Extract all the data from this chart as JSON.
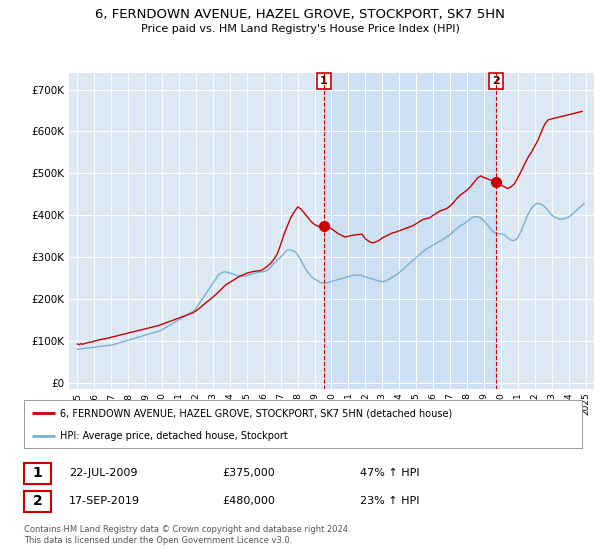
{
  "title": "6, FERNDOWN AVENUE, HAZEL GROVE, STOCKPORT, SK7 5HN",
  "subtitle": "Price paid vs. HM Land Registry's House Price Index (HPI)",
  "title_fontsize": 10,
  "subtitle_fontsize": 8.5,
  "background_color": "#dce9f5",
  "fig_bg_color": "#ffffff",
  "red_line_color": "#cc0000",
  "blue_line_color": "#7ab0d4",
  "shade_color": "#c8ddf0",
  "marker1_x": 2009.55,
  "marker1_y": 375000,
  "marker2_x": 2019.71,
  "marker2_y": 480000,
  "yticks": [
    0,
    100000,
    200000,
    300000,
    400000,
    500000,
    600000,
    700000
  ],
  "ylim": [
    -15000,
    740000
  ],
  "xlim": [
    1994.5,
    2025.5
  ],
  "legend_label_red": "6, FERNDOWN AVENUE, HAZEL GROVE, STOCKPORT, SK7 5HN (detached house)",
  "legend_label_blue": "HPI: Average price, detached house, Stockport",
  "annotation1_date": "22-JUL-2009",
  "annotation1_price": "£375,000",
  "annotation1_hpi": "47% ↑ HPI",
  "annotation2_date": "17-SEP-2019",
  "annotation2_price": "£480,000",
  "annotation2_hpi": "23% ↑ HPI",
  "footnote": "Contains HM Land Registry data © Crown copyright and database right 2024.\nThis data is licensed under the Open Government Licence v3.0.",
  "red_years": [
    1995.0,
    1995.1,
    1995.2,
    1995.3,
    1995.5,
    1995.7,
    1995.9,
    1996.0,
    1996.2,
    1996.4,
    1996.6,
    1996.8,
    1997.0,
    1997.2,
    1997.4,
    1997.6,
    1997.8,
    1998.0,
    1998.2,
    1998.4,
    1998.6,
    1998.8,
    1999.0,
    1999.2,
    1999.4,
    1999.6,
    1999.8,
    2000.0,
    2000.2,
    2000.4,
    2000.6,
    2000.8,
    2001.0,
    2001.2,
    2001.4,
    2001.6,
    2001.8,
    2002.0,
    2002.2,
    2002.4,
    2002.6,
    2002.8,
    2003.0,
    2003.2,
    2003.4,
    2003.6,
    2003.8,
    2004.0,
    2004.2,
    2004.4,
    2004.6,
    2004.8,
    2005.0,
    2005.2,
    2005.4,
    2005.6,
    2005.8,
    2006.0,
    2006.2,
    2006.4,
    2006.6,
    2006.8,
    2007.0,
    2007.2,
    2007.4,
    2007.6,
    2007.8,
    2008.0,
    2008.2,
    2008.4,
    2008.6,
    2008.8,
    2009.0,
    2009.2,
    2009.4,
    2009.55,
    2010.0,
    2010.2,
    2010.4,
    2010.6,
    2010.8,
    2011.0,
    2011.2,
    2011.4,
    2011.6,
    2011.8,
    2012.0,
    2012.2,
    2012.4,
    2012.6,
    2012.8,
    2013.0,
    2013.2,
    2013.4,
    2013.6,
    2013.8,
    2014.0,
    2014.2,
    2014.4,
    2014.6,
    2014.8,
    2015.0,
    2015.2,
    2015.4,
    2015.6,
    2015.8,
    2016.0,
    2016.2,
    2016.4,
    2016.6,
    2016.8,
    2017.0,
    2017.2,
    2017.4,
    2017.6,
    2017.8,
    2018.0,
    2018.2,
    2018.4,
    2018.6,
    2018.8,
    2019.0,
    2019.2,
    2019.4,
    2019.55,
    2019.71,
    2020.0,
    2020.2,
    2020.4,
    2020.6,
    2020.8,
    2021.0,
    2021.2,
    2021.4,
    2021.6,
    2021.8,
    2022.0,
    2022.2,
    2022.4,
    2022.6,
    2022.8,
    2023.0,
    2023.2,
    2023.4,
    2023.6,
    2023.8,
    2024.0,
    2024.2,
    2024.4,
    2024.6,
    2024.8
  ],
  "red_values": [
    93000,
    91000,
    94000,
    92000,
    95000,
    97000,
    98000,
    100000,
    102000,
    104000,
    105000,
    107000,
    109000,
    111000,
    113000,
    115000,
    117000,
    119000,
    121000,
    123000,
    125000,
    127000,
    129000,
    131000,
    133000,
    135000,
    137000,
    140000,
    143000,
    146000,
    149000,
    152000,
    155000,
    158000,
    161000,
    164000,
    167000,
    172000,
    178000,
    185000,
    192000,
    198000,
    205000,
    212000,
    220000,
    228000,
    235000,
    240000,
    245000,
    250000,
    255000,
    258000,
    262000,
    264000,
    266000,
    267000,
    268000,
    272000,
    278000,
    285000,
    295000,
    308000,
    330000,
    355000,
    375000,
    395000,
    408000,
    420000,
    415000,
    405000,
    395000,
    385000,
    378000,
    374000,
    372000,
    375000,
    368000,
    362000,
    356000,
    352000,
    348000,
    350000,
    352000,
    353000,
    354000,
    355000,
    344000,
    338000,
    334000,
    336000,
    340000,
    346000,
    350000,
    354000,
    358000,
    360000,
    363000,
    366000,
    369000,
    372000,
    375000,
    380000,
    385000,
    390000,
    392000,
    394000,
    400000,
    405000,
    410000,
    413000,
    416000,
    422000,
    430000,
    440000,
    448000,
    454000,
    460000,
    468000,
    478000,
    488000,
    494000,
    490000,
    487000,
    484000,
    482000,
    480000,
    472000,
    468000,
    464000,
    468000,
    475000,
    490000,
    505000,
    522000,
    538000,
    550000,
    565000,
    580000,
    600000,
    618000,
    628000,
    630000,
    632000,
    634000,
    636000,
    638000,
    640000,
    642000,
    644000,
    646000,
    648000
  ],
  "blue_years": [
    1995.0,
    1995.08,
    1995.17,
    1995.25,
    1995.33,
    1995.42,
    1995.5,
    1995.58,
    1995.67,
    1995.75,
    1995.83,
    1995.92,
    1996.0,
    1996.08,
    1996.17,
    1996.25,
    1996.33,
    1996.42,
    1996.5,
    1996.58,
    1996.67,
    1996.75,
    1996.83,
    1996.92,
    1997.0,
    1997.08,
    1997.17,
    1997.25,
    1997.33,
    1997.42,
    1997.5,
    1997.58,
    1997.67,
    1997.75,
    1997.83,
    1997.92,
    1998.0,
    1998.08,
    1998.17,
    1998.25,
    1998.33,
    1998.42,
    1998.5,
    1998.58,
    1998.67,
    1998.75,
    1998.83,
    1998.92,
    1999.0,
    1999.08,
    1999.17,
    1999.25,
    1999.33,
    1999.42,
    1999.5,
    1999.58,
    1999.67,
    1999.75,
    1999.83,
    1999.92,
    2000.0,
    2000.08,
    2000.17,
    2000.25,
    2000.33,
    2000.42,
    2000.5,
    2000.58,
    2000.67,
    2000.75,
    2000.83,
    2000.92,
    2001.0,
    2001.08,
    2001.17,
    2001.25,
    2001.33,
    2001.42,
    2001.5,
    2001.58,
    2001.67,
    2001.75,
    2001.83,
    2001.92,
    2002.0,
    2002.08,
    2002.17,
    2002.25,
    2002.33,
    2002.42,
    2002.5,
    2002.58,
    2002.67,
    2002.75,
    2002.83,
    2002.92,
    2003.0,
    2003.08,
    2003.17,
    2003.25,
    2003.33,
    2003.42,
    2003.5,
    2003.58,
    2003.67,
    2003.75,
    2003.83,
    2003.92,
    2004.0,
    2004.08,
    2004.17,
    2004.25,
    2004.33,
    2004.42,
    2004.5,
    2004.58,
    2004.67,
    2004.75,
    2004.83,
    2004.92,
    2005.0,
    2005.08,
    2005.17,
    2005.25,
    2005.33,
    2005.42,
    2005.5,
    2005.58,
    2005.67,
    2005.75,
    2005.83,
    2005.92,
    2006.0,
    2006.08,
    2006.17,
    2006.25,
    2006.33,
    2006.42,
    2006.5,
    2006.58,
    2006.67,
    2006.75,
    2006.83,
    2006.92,
    2007.0,
    2007.08,
    2007.17,
    2007.25,
    2007.33,
    2007.42,
    2007.5,
    2007.58,
    2007.67,
    2007.75,
    2007.83,
    2007.92,
    2008.0,
    2008.08,
    2008.17,
    2008.25,
    2008.33,
    2008.42,
    2008.5,
    2008.58,
    2008.67,
    2008.75,
    2008.83,
    2008.92,
    2009.0,
    2009.08,
    2009.17,
    2009.25,
    2009.33,
    2009.42,
    2009.5,
    2009.58,
    2009.67,
    2009.75,
    2009.83,
    2009.92,
    2010.0,
    2010.08,
    2010.17,
    2010.25,
    2010.33,
    2010.42,
    2010.5,
    2010.58,
    2010.67,
    2010.75,
    2010.83,
    2010.92,
    2011.0,
    2011.08,
    2011.17,
    2011.25,
    2011.33,
    2011.42,
    2011.5,
    2011.58,
    2011.67,
    2011.75,
    2011.83,
    2011.92,
    2012.0,
    2012.08,
    2012.17,
    2012.25,
    2012.33,
    2012.42,
    2012.5,
    2012.58,
    2012.67,
    2012.75,
    2012.83,
    2012.92,
    2013.0,
    2013.08,
    2013.17,
    2013.25,
    2013.33,
    2013.42,
    2013.5,
    2013.58,
    2013.67,
    2013.75,
    2013.83,
    2013.92,
    2014.0,
    2014.08,
    2014.17,
    2014.25,
    2014.33,
    2014.42,
    2014.5,
    2014.58,
    2014.67,
    2014.75,
    2014.83,
    2014.92,
    2015.0,
    2015.08,
    2015.17,
    2015.25,
    2015.33,
    2015.42,
    2015.5,
    2015.58,
    2015.67,
    2015.75,
    2015.83,
    2015.92,
    2016.0,
    2016.08,
    2016.17,
    2016.25,
    2016.33,
    2016.42,
    2016.5,
    2016.58,
    2016.67,
    2016.75,
    2016.83,
    2016.92,
    2017.0,
    2017.08,
    2017.17,
    2017.25,
    2017.33,
    2017.42,
    2017.5,
    2017.58,
    2017.67,
    2017.75,
    2017.83,
    2017.92,
    2018.0,
    2018.08,
    2018.17,
    2018.25,
    2018.33,
    2018.42,
    2018.5,
    2018.58,
    2018.67,
    2018.75,
    2018.83,
    2018.92,
    2019.0,
    2019.08,
    2019.17,
    2019.25,
    2019.33,
    2019.42,
    2019.5,
    2019.58,
    2019.67,
    2019.75,
    2019.83,
    2019.92,
    2020.0,
    2020.08,
    2020.17,
    2020.25,
    2020.33,
    2020.42,
    2020.5,
    2020.58,
    2020.67,
    2020.75,
    2020.83,
    2020.92,
    2021.0,
    2021.08,
    2021.17,
    2021.25,
    2021.33,
    2021.42,
    2021.5,
    2021.58,
    2021.67,
    2021.75,
    2021.83,
    2021.92,
    2022.0,
    2022.08,
    2022.17,
    2022.25,
    2022.33,
    2022.42,
    2022.5,
    2022.58,
    2022.67,
    2022.75,
    2022.83,
    2022.92,
    2023.0,
    2023.08,
    2023.17,
    2023.25,
    2023.33,
    2023.42,
    2023.5,
    2023.58,
    2023.67,
    2023.75,
    2023.83,
    2023.92,
    2024.0,
    2024.08,
    2024.17,
    2024.25,
    2024.33,
    2024.42,
    2024.5,
    2024.58,
    2024.67,
    2024.75,
    2024.83,
    2024.92
  ],
  "blue_values": [
    80000,
    80500,
    81000,
    81500,
    82000,
    82500,
    83000,
    83300,
    83600,
    83900,
    84200,
    84500,
    85000,
    85500,
    86000,
    86500,
    87000,
    87500,
    88000,
    88300,
    88600,
    88900,
    89200,
    89500,
    90000,
    91000,
    92000,
    93000,
    94000,
    95000,
    96000,
    97000,
    98000,
    99000,
    100000,
    101000,
    102000,
    103000,
    104000,
    105000,
    106000,
    107000,
    108000,
    109000,
    110000,
    111000,
    112000,
    113000,
    114000,
    115000,
    116000,
    117000,
    118000,
    119000,
    120000,
    121000,
    122000,
    123000,
    124000,
    125000,
    127000,
    129000,
    131000,
    133000,
    135000,
    137000,
    139000,
    141000,
    143000,
    145000,
    147000,
    149000,
    151000,
    153000,
    155000,
    157000,
    159000,
    161000,
    163000,
    165000,
    167000,
    169000,
    171000,
    173000,
    178000,
    183000,
    188000,
    193000,
    198000,
    203000,
    208000,
    213000,
    218000,
    223000,
    228000,
    233000,
    238000,
    243000,
    248000,
    253000,
    258000,
    260000,
    262000,
    264000,
    265000,
    265000,
    264000,
    263000,
    262000,
    261000,
    260000,
    259000,
    258000,
    257000,
    256000,
    255000,
    255000,
    255000,
    255000,
    255000,
    256000,
    257000,
    258000,
    259000,
    260000,
    261000,
    262000,
    263000,
    264000,
    265000,
    265000,
    265000,
    266000,
    267000,
    268000,
    270000,
    273000,
    277000,
    281000,
    285000,
    288000,
    291000,
    294000,
    297000,
    300000,
    304000,
    308000,
    312000,
    315000,
    317000,
    318000,
    317000,
    316000,
    315000,
    313000,
    310000,
    306000,
    300000,
    294000,
    288000,
    282000,
    276000,
    270000,
    265000,
    260000,
    256000,
    253000,
    250000,
    248000,
    246000,
    244000,
    242000,
    240000,
    239000,
    238000,
    238000,
    238000,
    239000,
    240000,
    241000,
    242000,
    243000,
    244000,
    245000,
    246000,
    247000,
    248000,
    249000,
    250000,
    251000,
    252000,
    253000,
    254000,
    255000,
    256000,
    257000,
    257000,
    257000,
    257000,
    257000,
    257000,
    256000,
    255000,
    254000,
    253000,
    252000,
    251000,
    250000,
    249000,
    248000,
    247000,
    246000,
    245000,
    244000,
    243000,
    242000,
    242000,
    242000,
    243000,
    244000,
    246000,
    248000,
    250000,
    252000,
    254000,
    256000,
    258000,
    260000,
    263000,
    266000,
    269000,
    272000,
    275000,
    278000,
    281000,
    284000,
    287000,
    290000,
    293000,
    296000,
    299000,
    302000,
    305000,
    308000,
    311000,
    314000,
    317000,
    319000,
    321000,
    323000,
    325000,
    327000,
    329000,
    331000,
    333000,
    335000,
    337000,
    339000,
    341000,
    343000,
    345000,
    347000,
    349000,
    351000,
    354000,
    357000,
    360000,
    363000,
    366000,
    369000,
    372000,
    374000,
    376000,
    378000,
    380000,
    382000,
    385000,
    388000,
    391000,
    393000,
    395000,
    396000,
    397000,
    397000,
    396000,
    395000,
    393000,
    390000,
    387000,
    383000,
    379000,
    375000,
    371000,
    367000,
    363000,
    360000,
    358000,
    357000,
    356000,
    356000,
    356000,
    355000,
    354000,
    352000,
    349000,
    346000,
    343000,
    341000,
    340000,
    340000,
    341000,
    343000,
    347000,
    353000,
    360000,
    368000,
    376000,
    384000,
    392000,
    400000,
    407000,
    413000,
    418000,
    422000,
    425000,
    427000,
    428000,
    428000,
    427000,
    425000,
    423000,
    420000,
    417000,
    413000,
    409000,
    405000,
    401000,
    398000,
    396000,
    394000,
    393000,
    392000,
    391000,
    391000,
    391000,
    392000,
    393000,
    394000,
    396000,
    398000,
    401000,
    404000,
    407000,
    410000,
    413000,
    416000,
    419000,
    422000,
    425000,
    428000
  ]
}
